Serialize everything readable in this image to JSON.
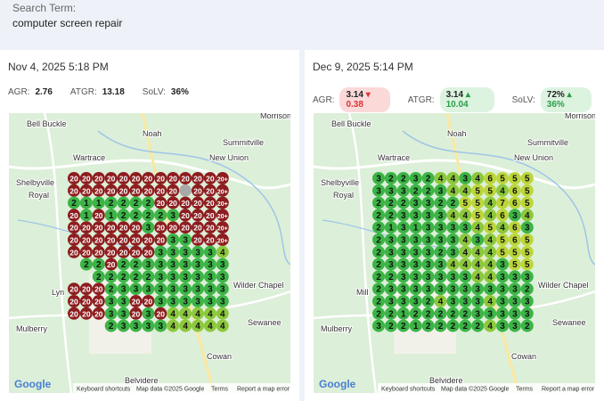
{
  "header": {
    "label": "Search Term:",
    "term": "computer screen repair"
  },
  "panels": [
    {
      "date": "Nov 4, 2025 5:18 PM",
      "metrics": {
        "agr_label": "AGR:",
        "agr": "2.76",
        "atgr_label": "ATGR:",
        "atgr": "13.18",
        "solv_label": "SoLV:",
        "solv": "36%"
      },
      "map": {
        "places": [
          "Bell Buckle",
          "Noah",
          "Morrison",
          "Summitville",
          "Wartrace",
          "New Union",
          "Shelbyville",
          "Royal",
          "Wilder Chapel",
          "Mulberry",
          "Sewanee",
          "Cowan",
          "Belvidere",
          "Lyn"
        ],
        "attribution": [
          "Keyboard shortcuts",
          "Map data ©2025 Google",
          "Terms",
          "Report a map error"
        ],
        "logo": "Google"
      },
      "grid": [
        [
          20,
          20,
          20,
          20,
          20,
          20,
          20,
          20,
          20,
          20,
          20,
          20,
          "20+"
        ],
        [
          20,
          20,
          20,
          20,
          20,
          20,
          20,
          20,
          20,
          null,
          20,
          20,
          "20+"
        ],
        [
          2,
          1,
          1,
          2,
          2,
          2,
          2,
          20,
          20,
          20,
          20,
          20,
          "20+"
        ],
        [
          20,
          1,
          20,
          1,
          2,
          2,
          2,
          2,
          3,
          20,
          20,
          20,
          "20+"
        ],
        [
          20,
          20,
          20,
          20,
          20,
          20,
          3,
          20,
          20,
          20,
          20,
          20,
          "20+"
        ],
        [
          20,
          20,
          20,
          20,
          20,
          20,
          20,
          20,
          3,
          3,
          20,
          20,
          "20+"
        ],
        [
          20,
          20,
          20,
          20,
          20,
          20,
          20,
          3,
          3,
          3,
          3,
          3,
          4
        ],
        [
          null,
          2,
          2,
          20,
          2,
          2,
          3,
          3,
          3,
          3,
          3,
          3,
          3
        ],
        [
          null,
          null,
          2,
          2,
          2,
          2,
          2,
          3,
          3,
          3,
          3,
          3,
          3
        ],
        [
          20,
          20,
          20,
          2,
          3,
          3,
          3,
          3,
          3,
          3,
          3,
          3,
          3
        ],
        [
          20,
          20,
          20,
          3,
          3,
          20,
          20,
          3,
          3,
          3,
          3,
          3,
          3
        ],
        [
          20,
          20,
          20,
          3,
          3,
          20,
          3,
          20,
          4,
          4,
          4,
          4,
          4
        ],
        [
          null,
          null,
          null,
          2,
          3,
          3,
          3,
          3,
          4,
          4,
          4,
          4,
          4
        ]
      ]
    },
    {
      "date": "Dec 9, 2025 5:14 PM",
      "metrics": {
        "agr_label": "AGR:",
        "agr": "3.14",
        "agr_delta": "▾ 0.38",
        "atgr_label": "ATGR:",
        "atgr": "3.14",
        "atgr_delta": "▴ 10.04",
        "solv_label": "SoLV:",
        "solv": "72%",
        "solv_delta": "▴ 36%"
      },
      "map": {
        "places": [
          "Bell Buckle",
          "Noah",
          "Morrison",
          "Summitville",
          "Wartrace",
          "New Union",
          "Shelbyville",
          "Royal",
          "Wilder Chapel",
          "Mulberry",
          "Sewanee",
          "Cowan",
          "Belvidere",
          "Mill"
        ],
        "attribution": [
          "Keyboard shortcuts",
          "Map data ©2025 Google",
          "Terms",
          "Report a map error"
        ],
        "logo": "Google"
      },
      "grid": [
        [
          3,
          2,
          2,
          3,
          2,
          4,
          4,
          3,
          4,
          6,
          5,
          5,
          5
        ],
        [
          3,
          3,
          3,
          2,
          2,
          3,
          4,
          4,
          5,
          5,
          4,
          6,
          5
        ],
        [
          2,
          2,
          2,
          3,
          3,
          2,
          2,
          5,
          5,
          4,
          7,
          6,
          5
        ],
        [
          2,
          2,
          3,
          3,
          3,
          3,
          4,
          4,
          5,
          4,
          6,
          3,
          4
        ],
        [
          2,
          1,
          3,
          1,
          3,
          3,
          3,
          3,
          4,
          5,
          4,
          6,
          3
        ],
        [
          2,
          3,
          3,
          3,
          3,
          3,
          3,
          4,
          3,
          4,
          5,
          6,
          5
        ],
        [
          2,
          3,
          3,
          3,
          3,
          2,
          3,
          4,
          4,
          4,
          5,
          5,
          5
        ],
        [
          2,
          3,
          3,
          3,
          3,
          3,
          4,
          4,
          4,
          4,
          3,
          5,
          5
        ],
        [
          2,
          2,
          3,
          3,
          3,
          3,
          3,
          3,
          4,
          4,
          3,
          3,
          3
        ],
        [
          2,
          3,
          3,
          3,
          3,
          3,
          3,
          3,
          3,
          3,
          3,
          3,
          2
        ],
        [
          2,
          3,
          3,
          3,
          2,
          4,
          3,
          3,
          3,
          4,
          3,
          3,
          3
        ],
        [
          2,
          2,
          1,
          2,
          2,
          2,
          2,
          2,
          3,
          3,
          3,
          3,
          3
        ],
        [
          3,
          2,
          2,
          1,
          2,
          2,
          2,
          2,
          2,
          4,
          3,
          3,
          2
        ]
      ]
    }
  ]
}
